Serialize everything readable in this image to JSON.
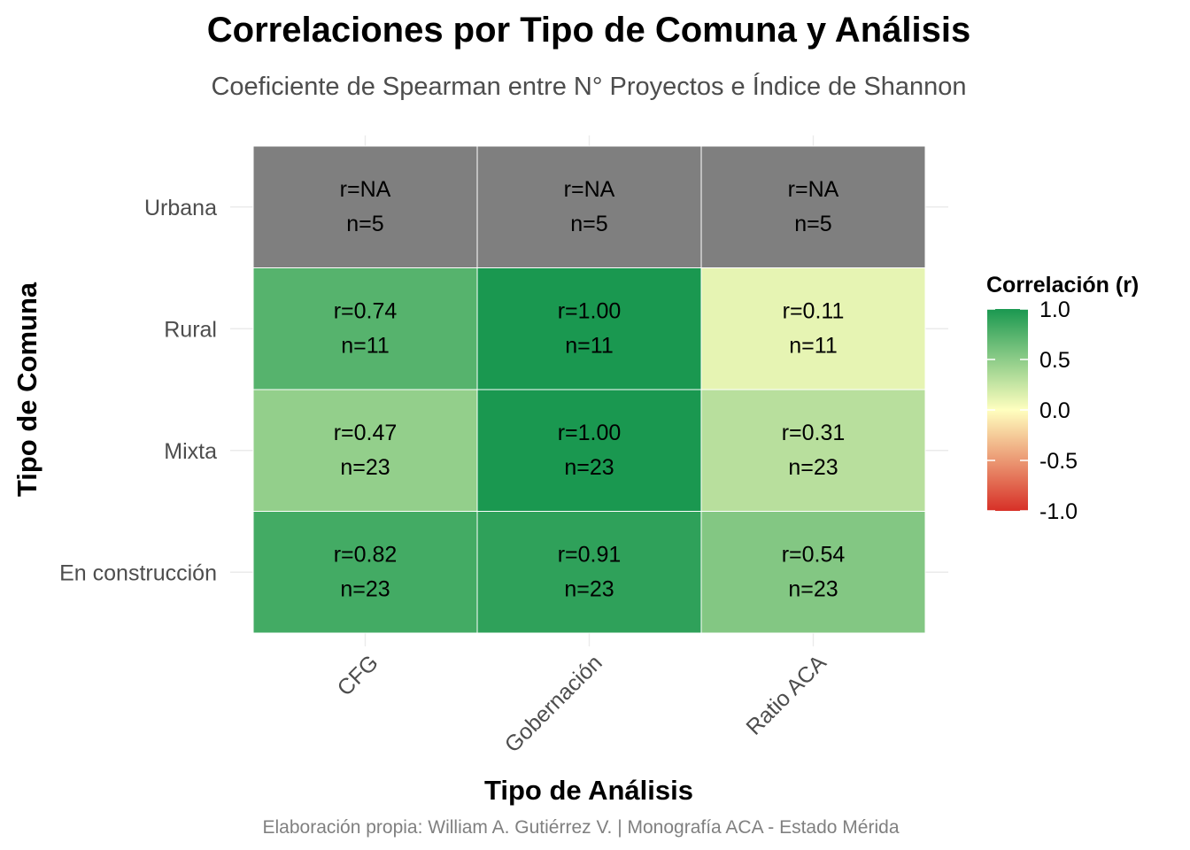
{
  "chart_data": {
    "type": "heatmap",
    "title": "Correlaciones por Tipo de Comuna y Análisis",
    "subtitle": "Coeficiente de Spearman entre N° Proyectos e Índice de Shannon",
    "xlabel": "Tipo de Análisis",
    "ylabel": "Tipo de Comuna",
    "caption": "Elaboración propia: William A. Gutiérrez V. | Monografía ACA - Estado Mérida",
    "x_categories": [
      "CFG",
      "Gobernación",
      "Ratio ACA"
    ],
    "y_categories": [
      "Urbana",
      "Rural",
      "Mixta",
      "En construcción"
    ],
    "cells": [
      {
        "x": "CFG",
        "y": "Urbana",
        "r": null,
        "n": 5,
        "r_label": "r=NA",
        "n_label": "n=5"
      },
      {
        "x": "Gobernación",
        "y": "Urbana",
        "r": null,
        "n": 5,
        "r_label": "r=NA",
        "n_label": "n=5"
      },
      {
        "x": "Ratio ACA",
        "y": "Urbana",
        "r": null,
        "n": 5,
        "r_label": "r=NA",
        "n_label": "n=5"
      },
      {
        "x": "CFG",
        "y": "Rural",
        "r": 0.74,
        "n": 11,
        "r_label": "r=0.74",
        "n_label": "n=11"
      },
      {
        "x": "Gobernación",
        "y": "Rural",
        "r": 1.0,
        "n": 11,
        "r_label": "r=1.00",
        "n_label": "n=11"
      },
      {
        "x": "Ratio ACA",
        "y": "Rural",
        "r": 0.11,
        "n": 11,
        "r_label": "r=0.11",
        "n_label": "n=11"
      },
      {
        "x": "CFG",
        "y": "Mixta",
        "r": 0.47,
        "n": 23,
        "r_label": "r=0.47",
        "n_label": "n=23"
      },
      {
        "x": "Gobernación",
        "y": "Mixta",
        "r": 1.0,
        "n": 23,
        "r_label": "r=1.00",
        "n_label": "n=23"
      },
      {
        "x": "Ratio ACA",
        "y": "Mixta",
        "r": 0.31,
        "n": 23,
        "r_label": "r=0.31",
        "n_label": "n=23"
      },
      {
        "x": "CFG",
        "y": "En construcción",
        "r": 0.82,
        "n": 23,
        "r_label": "r=0.82",
        "n_label": "n=23"
      },
      {
        "x": "Gobernación",
        "y": "En construcción",
        "r": 0.91,
        "n": 23,
        "r_label": "r=0.91",
        "n_label": "n=23"
      },
      {
        "x": "Ratio ACA",
        "y": "En construcción",
        "r": 0.54,
        "n": 23,
        "r_label": "r=0.54",
        "n_label": "n=23"
      }
    ],
    "legend": {
      "title": "Correlación (r)",
      "placement": "right",
      "breaks": [
        1.0,
        0.5,
        0.0,
        -0.5,
        -1.0
      ],
      "break_labels": [
        "1.0",
        "0.5",
        "0.0",
        "-0.5",
        "-1.0"
      ],
      "limits": [
        -1.0,
        1.0
      ]
    },
    "colors": {
      "high": "#1a9850",
      "mid": "#ffffbf",
      "low": "#d73027",
      "na": "#7f7f7f",
      "grid": "#ebebeb"
    },
    "grid": true
  }
}
